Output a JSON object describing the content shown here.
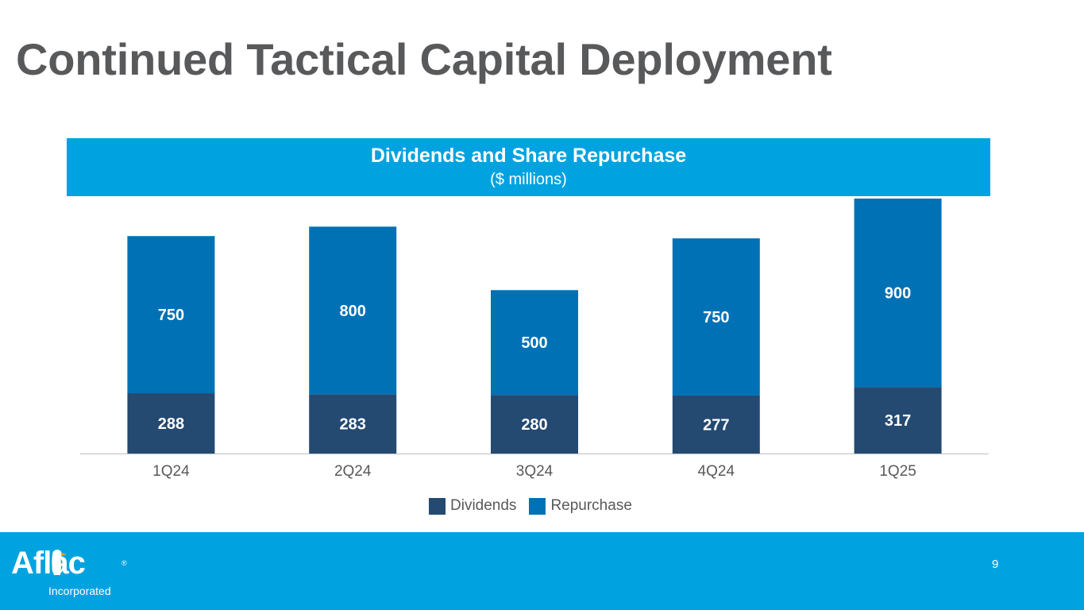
{
  "slide": {
    "title": "Continued Tactical Capital Deployment",
    "page_number": "9"
  },
  "logo": {
    "wordmark": "Aflac",
    "subtitle": "Incorporated",
    "registered_mark": "®"
  },
  "colors": {
    "brand_blue": "#00a3e0",
    "dividends": "#244a72",
    "repurchase": "#0071b5",
    "title_gray": "#58595b",
    "axis_gray": "#bfbfbf"
  },
  "chart_data": {
    "type": "bar",
    "stacked": true,
    "title": "Dividends and Share Repurchase",
    "subtitle": "($ millions)",
    "categories": [
      "1Q24",
      "2Q24",
      "3Q24",
      "4Q24",
      "1Q25"
    ],
    "series": [
      {
        "name": "Dividends",
        "values": [
          288,
          283,
          280,
          277,
          317
        ],
        "color": "#244a72"
      },
      {
        "name": "Repurchase",
        "values": [
          750,
          800,
          500,
          750,
          900
        ],
        "color": "#0071b5"
      }
    ],
    "data_labels": true,
    "legend_position": "bottom",
    "grid": false,
    "ylim": [
      0,
      1217
    ]
  }
}
